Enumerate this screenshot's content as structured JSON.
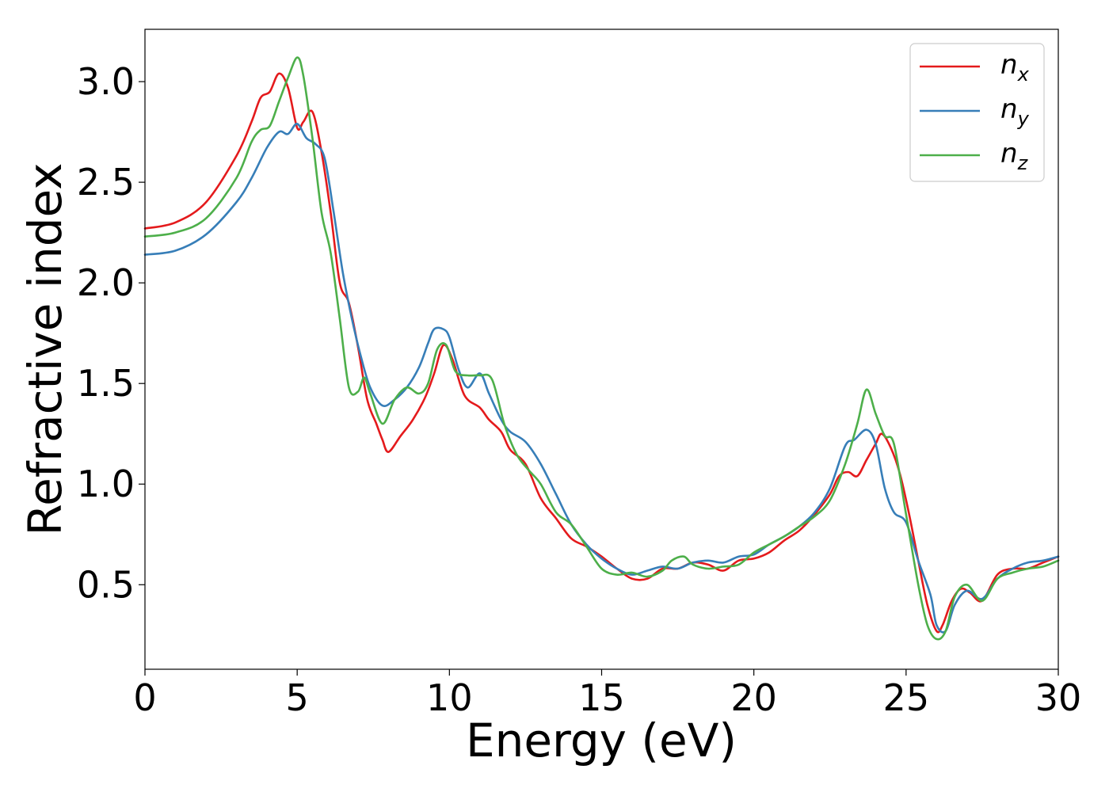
{
  "chart_data": {
    "type": "line",
    "title": "",
    "xlabel": "Energy (eV)",
    "ylabel": "Refractive index",
    "xlim": [
      0,
      30
    ],
    "ylim": [
      0.08,
      3.26
    ],
    "xticks": [
      0,
      5,
      10,
      15,
      20,
      25,
      30
    ],
    "xtick_labels": [
      "0",
      "5",
      "10",
      "15",
      "20",
      "25",
      "30"
    ],
    "yticks": [
      0.5,
      1.0,
      1.5,
      2.0,
      2.5,
      3.0
    ],
    "ytick_labels": [
      "0.5",
      "1.0",
      "1.5",
      "2.0",
      "2.5",
      "3.0"
    ],
    "grid": false,
    "legend_position": "top-right",
    "series": [
      {
        "name": "n",
        "subscript": "x",
        "color": "#e41a1c",
        "x": [
          0,
          1,
          2,
          3,
          3.5,
          3.8,
          4.1,
          4.4,
          4.7,
          5.0,
          5.2,
          5.5,
          5.8,
          6.1,
          6.4,
          6.7,
          7.0,
          7.3,
          7.6,
          7.8,
          8.0,
          8.4,
          8.8,
          9.2,
          9.5,
          9.8,
          10.1,
          10.5,
          11.0,
          11.3,
          11.7,
          12.0,
          12.5,
          13.0,
          13.5,
          14.0,
          14.5,
          15.0,
          15.5,
          16.0,
          16.5,
          17.0,
          17.5,
          18.0,
          18.5,
          19.0,
          19.5,
          20.0,
          20.5,
          21.0,
          21.5,
          22.0,
          22.5,
          22.8,
          23.1,
          23.4,
          23.7,
          24.0,
          24.2,
          24.5,
          24.8,
          25.1,
          25.4,
          25.7,
          26.0,
          26.2,
          26.5,
          26.8,
          27.1,
          27.5,
          28.0,
          28.5,
          29.0,
          29.5,
          30.0
        ],
        "y": [
          2.27,
          2.3,
          2.4,
          2.63,
          2.8,
          2.92,
          2.95,
          3.04,
          2.97,
          2.77,
          2.8,
          2.85,
          2.65,
          2.35,
          2.0,
          1.9,
          1.68,
          1.42,
          1.3,
          1.22,
          1.16,
          1.24,
          1.32,
          1.43,
          1.55,
          1.69,
          1.62,
          1.44,
          1.38,
          1.32,
          1.26,
          1.17,
          1.1,
          0.93,
          0.83,
          0.73,
          0.69,
          0.64,
          0.58,
          0.53,
          0.53,
          0.58,
          0.58,
          0.61,
          0.6,
          0.57,
          0.62,
          0.63,
          0.66,
          0.72,
          0.77,
          0.85,
          0.95,
          1.04,
          1.06,
          1.04,
          1.12,
          1.2,
          1.25,
          1.18,
          1.05,
          0.85,
          0.62,
          0.4,
          0.27,
          0.3,
          0.42,
          0.48,
          0.46,
          0.42,
          0.55,
          0.58,
          0.58,
          0.61,
          0.64
        ]
      },
      {
        "name": "n",
        "subscript": "y",
        "color": "#377eb8",
        "x": [
          0,
          1,
          2,
          3,
          3.5,
          4.0,
          4.4,
          4.7,
          5.0,
          5.3,
          5.6,
          5.9,
          6.2,
          6.5,
          6.8,
          7.1,
          7.4,
          7.8,
          8.2,
          8.6,
          9.0,
          9.3,
          9.5,
          9.8,
          10.0,
          10.3,
          10.6,
          11.0,
          11.3,
          11.7,
          12.0,
          12.5,
          13.0,
          13.5,
          14.0,
          14.5,
          15.0,
          15.5,
          16.0,
          16.5,
          17.0,
          17.5,
          18.0,
          18.5,
          19.0,
          19.5,
          20.0,
          20.5,
          21.0,
          21.5,
          22.0,
          22.5,
          23.0,
          23.3,
          23.7,
          24.0,
          24.3,
          24.6,
          25.0,
          25.4,
          25.8,
          26.0,
          26.3,
          26.6,
          27.0,
          27.5,
          28.0,
          28.5,
          29.0,
          29.5,
          30.0
        ],
        "y": [
          2.14,
          2.16,
          2.24,
          2.4,
          2.52,
          2.67,
          2.75,
          2.74,
          2.79,
          2.72,
          2.69,
          2.62,
          2.35,
          2.05,
          1.82,
          1.63,
          1.48,
          1.39,
          1.42,
          1.48,
          1.58,
          1.7,
          1.77,
          1.77,
          1.73,
          1.57,
          1.48,
          1.55,
          1.45,
          1.32,
          1.26,
          1.21,
          1.1,
          0.95,
          0.8,
          0.7,
          0.63,
          0.58,
          0.55,
          0.57,
          0.59,
          0.58,
          0.61,
          0.62,
          0.61,
          0.64,
          0.65,
          0.7,
          0.74,
          0.79,
          0.86,
          0.98,
          1.19,
          1.22,
          1.27,
          1.2,
          0.98,
          0.86,
          0.81,
          0.62,
          0.45,
          0.3,
          0.27,
          0.4,
          0.47,
          0.43,
          0.53,
          0.58,
          0.61,
          0.62,
          0.64
        ]
      },
      {
        "name": "n",
        "subscript": "z",
        "color": "#4daf4a",
        "x": [
          0,
          1,
          2,
          3,
          3.5,
          3.8,
          4.1,
          4.4,
          4.7,
          5.0,
          5.2,
          5.5,
          5.8,
          6.1,
          6.4,
          6.7,
          7.0,
          7.2,
          7.4,
          7.8,
          8.2,
          8.6,
          9.0,
          9.3,
          9.6,
          9.9,
          10.2,
          10.6,
          11.0,
          11.4,
          11.8,
          12.2,
          12.6,
          13.0,
          13.5,
          14.0,
          14.5,
          15.0,
          15.5,
          16.0,
          16.5,
          17.0,
          17.3,
          17.7,
          18.0,
          18.5,
          19.0,
          19.5,
          20.0,
          20.5,
          21.0,
          21.5,
          22.0,
          22.5,
          23.0,
          23.4,
          23.7,
          24.0,
          24.3,
          24.6,
          25.0,
          25.4,
          25.7,
          26.0,
          26.3,
          26.6,
          27.0,
          27.5,
          28.0,
          28.5,
          29.0,
          29.5,
          30.0
        ],
        "y": [
          2.23,
          2.25,
          2.32,
          2.52,
          2.7,
          2.76,
          2.78,
          2.9,
          3.02,
          3.12,
          3.03,
          2.72,
          2.35,
          2.15,
          1.82,
          1.48,
          1.46,
          1.53,
          1.45,
          1.3,
          1.42,
          1.48,
          1.45,
          1.5,
          1.67,
          1.69,
          1.56,
          1.54,
          1.54,
          1.52,
          1.3,
          1.15,
          1.07,
          1.0,
          0.86,
          0.8,
          0.69,
          0.58,
          0.55,
          0.56,
          0.54,
          0.57,
          0.62,
          0.64,
          0.6,
          0.58,
          0.59,
          0.6,
          0.66,
          0.7,
          0.74,
          0.79,
          0.84,
          0.92,
          1.1,
          1.3,
          1.47,
          1.35,
          1.24,
          1.2,
          0.85,
          0.5,
          0.3,
          0.23,
          0.27,
          0.44,
          0.5,
          0.42,
          0.53,
          0.56,
          0.58,
          0.59,
          0.62
        ]
      }
    ]
  }
}
